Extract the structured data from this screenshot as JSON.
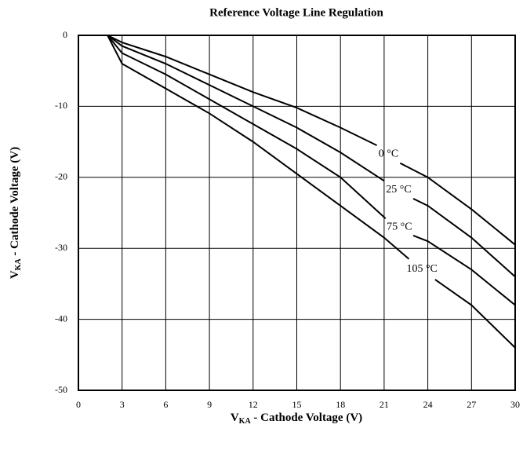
{
  "chart_data": {
    "type": "line",
    "title": "Reference Voltage Line Regulation",
    "x_label": [
      "V",
      "KA",
      " - Cathode Voltage (V)"
    ],
    "y_label": [
      "V",
      "KA",
      " - Cathode Voltage (V)"
    ],
    "xlim": [
      0,
      30
    ],
    "ylim": [
      -50,
      0
    ],
    "xticks": [
      0,
      3,
      6,
      9,
      12,
      15,
      18,
      21,
      24,
      27,
      30
    ],
    "yticks": [
      0,
      -10,
      -20,
      -30,
      -40,
      -50
    ],
    "grid": true,
    "series": [
      {
        "name": "0 °C",
        "color": "#000000",
        "x": [
          2,
          3,
          6,
          9,
          12,
          15,
          18,
          20.5,
          null,
          22.1,
          24,
          27,
          30
        ],
        "values": [
          0,
          -1,
          -3,
          -5.5,
          -8,
          -10.2,
          -13,
          -15.5,
          null,
          -18,
          -20,
          -24.5,
          -29.5
        ]
      },
      {
        "name": "25 °C",
        "color": "#000000",
        "x": [
          2,
          3,
          6,
          9,
          12,
          15,
          18,
          21,
          null,
          23,
          24,
          27,
          30
        ],
        "values": [
          0,
          -1.5,
          -4,
          -7,
          -10,
          -13,
          -16.5,
          -20.5,
          null,
          -23,
          -24,
          -28.5,
          -34
        ]
      },
      {
        "name": "75 °C",
        "color": "#000000",
        "x": [
          2,
          3,
          6,
          9,
          12,
          15,
          18,
          21.1,
          null,
          23,
          24,
          27,
          30
        ],
        "values": [
          0,
          -2.5,
          -5.5,
          -9,
          -12.5,
          -16,
          -20,
          -25.8,
          null,
          -28.2,
          -29,
          -33,
          -38
        ]
      },
      {
        "name": "105 °C",
        "color": "#000000",
        "x": [
          2,
          3,
          6,
          9,
          12,
          15,
          18,
          21,
          22.7,
          null,
          24.5,
          27,
          28,
          29,
          30
        ],
        "values": [
          0,
          -4,
          -7.5,
          -11,
          -15,
          -19.5,
          -24,
          -28.5,
          -31.5,
          null,
          -34.4,
          -38,
          -40,
          -42,
          -44
        ]
      }
    ]
  }
}
